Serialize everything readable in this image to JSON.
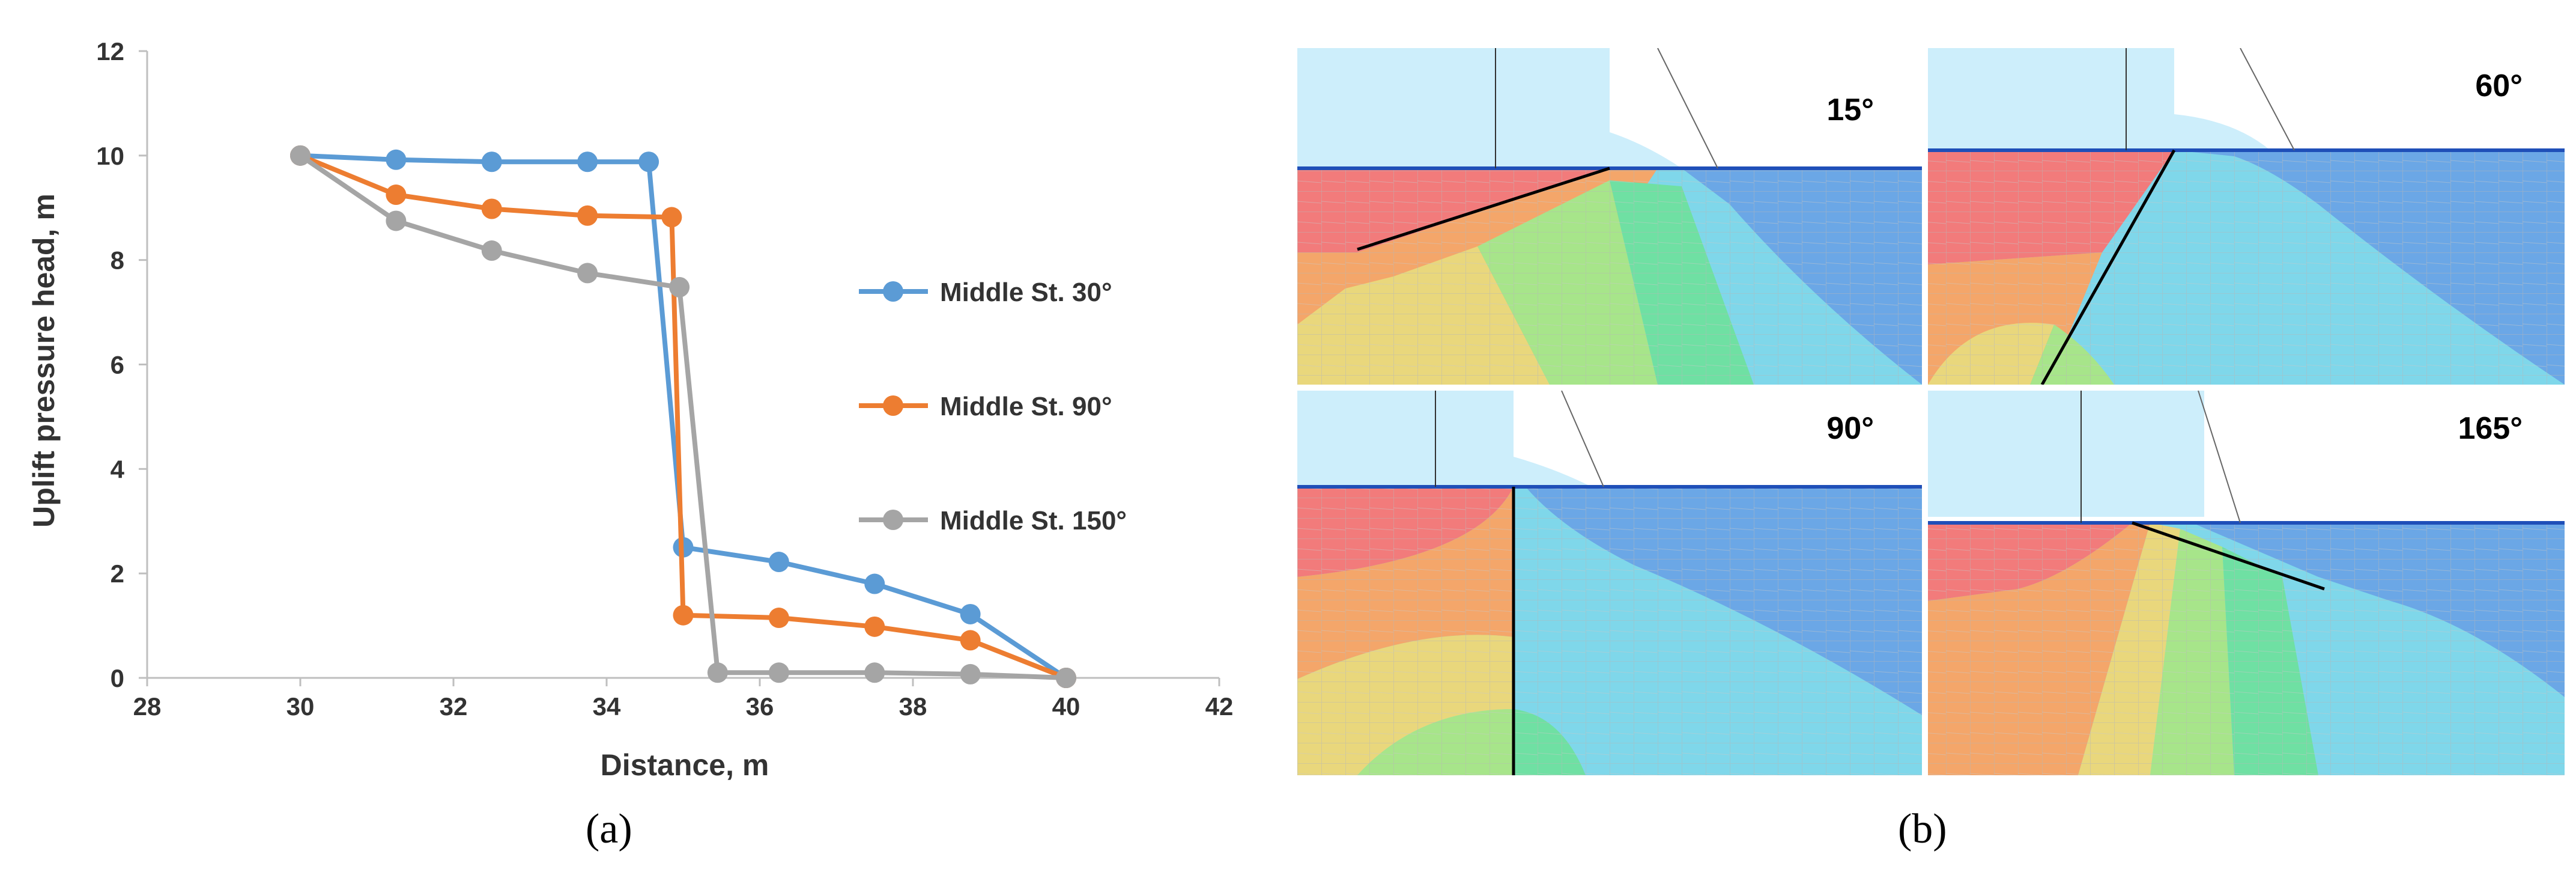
{
  "chart_data": [
    {
      "type": "line",
      "xlabel": "Distance, m",
      "ylabel": "Uplift pressure head, m",
      "xlim": [
        28,
        42
      ],
      "ylim": [
        0,
        12
      ],
      "xticks": [
        28,
        30,
        32,
        34,
        36,
        38,
        40,
        42
      ],
      "yticks": [
        0,
        2,
        4,
        6,
        8,
        10,
        12
      ],
      "grid": false,
      "legend_position": "right",
      "series": [
        {
          "name": "Middle St. 30°",
          "color": "#5b9bd5",
          "points": [
            [
              30,
              10
            ],
            [
              31.25,
              9.92
            ],
            [
              32.5,
              9.88
            ],
            [
              33.75,
              9.88
            ],
            [
              34.55,
              9.88
            ],
            [
              35.0,
              2.5
            ],
            [
              36.25,
              2.22
            ],
            [
              37.5,
              1.8
            ],
            [
              38.75,
              1.22
            ],
            [
              40,
              0
            ]
          ]
        },
        {
          "name": "Middle St. 90°",
          "color": "#ed7d31",
          "points": [
            [
              30,
              10
            ],
            [
              31.25,
              9.25
            ],
            [
              32.5,
              8.98
            ],
            [
              33.75,
              8.85
            ],
            [
              34.85,
              8.82
            ],
            [
              35.0,
              1.2
            ],
            [
              36.25,
              1.15
            ],
            [
              37.5,
              0.98
            ],
            [
              38.75,
              0.72
            ],
            [
              40,
              0
            ]
          ]
        },
        {
          "name": "Middle St. 150°",
          "color": "#a5a5a5",
          "points": [
            [
              30,
              10
            ],
            [
              31.25,
              8.75
            ],
            [
              32.5,
              8.18
            ],
            [
              33.75,
              7.75
            ],
            [
              34.95,
              7.48
            ],
            [
              35.45,
              0.1
            ],
            [
              36.25,
              0.1
            ],
            [
              37.5,
              0.1
            ],
            [
              38.75,
              0.07
            ],
            [
              40,
              0
            ]
          ]
        }
      ]
    },
    {
      "type": "figure",
      "panels": [
        {
          "angle": "15°"
        },
        {
          "angle": "60°"
        },
        {
          "angle": "90°"
        },
        {
          "angle": "165°"
        }
      ]
    }
  ],
  "labels": {
    "a": "(a)",
    "b": "(b)"
  }
}
